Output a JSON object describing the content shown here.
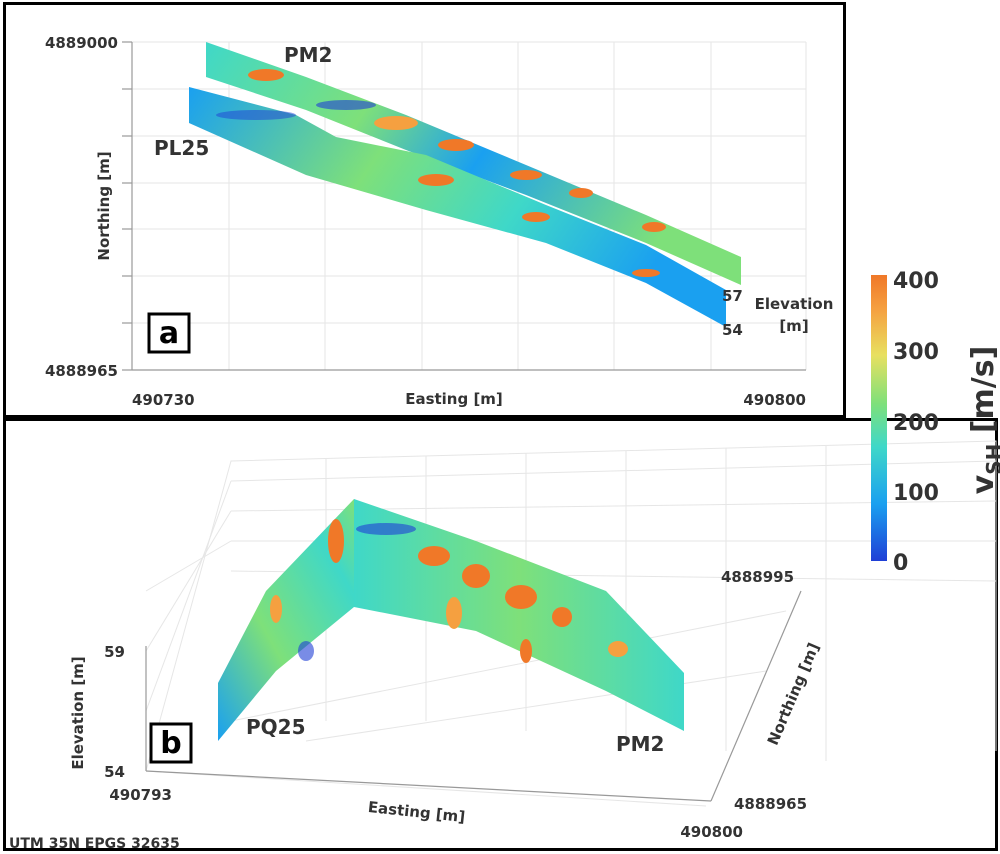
{
  "chart_data": [
    {
      "type": "heatmap",
      "panel_label": "a",
      "xlabel": "Easting [m]",
      "ylabel": "Northing [m]",
      "xlim": [
        490730,
        490800
      ],
      "ylim": [
        4888965,
        4889000
      ],
      "x_ticks": [
        "490730",
        "490800"
      ],
      "y_ticks": [
        "4889000",
        "4888965"
      ],
      "profiles": [
        "PM2",
        "PL25"
      ],
      "elevation_label": "Elevation [m]",
      "elevation_ticks": [
        "57",
        "54"
      ]
    },
    {
      "type": "heatmap",
      "panel_label": "b",
      "xlabel": "Easting [m]",
      "ylabel": "Northing [m]",
      "zlabel": "Elevation [m]",
      "x_ticks": [
        "490793",
        "490800"
      ],
      "y_ticks": [
        "4888995",
        "4888965"
      ],
      "z_ticks": [
        "59",
        "54"
      ],
      "profiles": [
        "PQ25",
        "PM2"
      ],
      "crs_note": "UTM 35N EPGS 32635"
    }
  ],
  "colorbar": {
    "label_main": "v",
    "label_sub": "SH",
    "label_unit": " [m/s]",
    "range": [
      0,
      400
    ],
    "ticks": [
      "400",
      "300",
      "200",
      "100",
      "0"
    ],
    "colors": [
      "#1f3fd6",
      "#1aa0f0",
      "#3fd8c8",
      "#7ee07a",
      "#e8e060",
      "#f5a040",
      "#f07828"
    ]
  }
}
